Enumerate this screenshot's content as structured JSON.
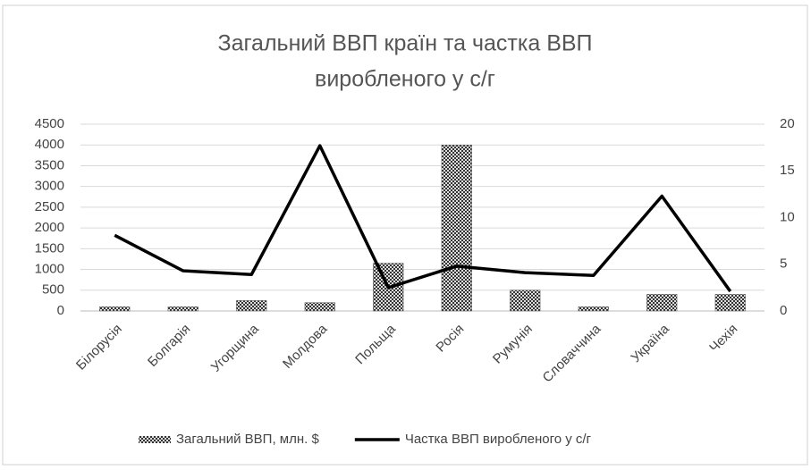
{
  "chart_data": {
    "type": "combo",
    "title": [
      "Загальний ВВП країн та частка ВВП",
      "виробленого у с/г"
    ],
    "categories": [
      "Білорусія",
      "Болгарія",
      "Угорщина",
      "Молдова",
      "Польща",
      "Росія",
      "Румунія",
      "Словаччина",
      "Україна",
      "Чехія"
    ],
    "series": [
      {
        "name": "Загальний ВВП, млн. $",
        "type": "bar",
        "color": "#555555",
        "values": [
          100,
          100,
          250,
          200,
          1150,
          4000,
          500,
          100,
          400,
          400
        ]
      },
      {
        "name": "Частка ВВП виробленого у с/г",
        "type": "line",
        "axis": "y2",
        "color": "#000000",
        "values": [
          8.1,
          4.3,
          3.9,
          17.7,
          2.5,
          4.8,
          4.1,
          3.8,
          12.3,
          2.1
        ]
      }
    ],
    "ylim": [
      0,
      4500
    ],
    "yticks": [
      0,
      500,
      1000,
      1500,
      2000,
      2500,
      3000,
      3500,
      4000,
      4500
    ],
    "y2lim": [
      0,
      20
    ],
    "y2ticks": [
      0,
      5,
      10,
      15,
      20
    ],
    "grid": true,
    "legend": "bottom"
  }
}
